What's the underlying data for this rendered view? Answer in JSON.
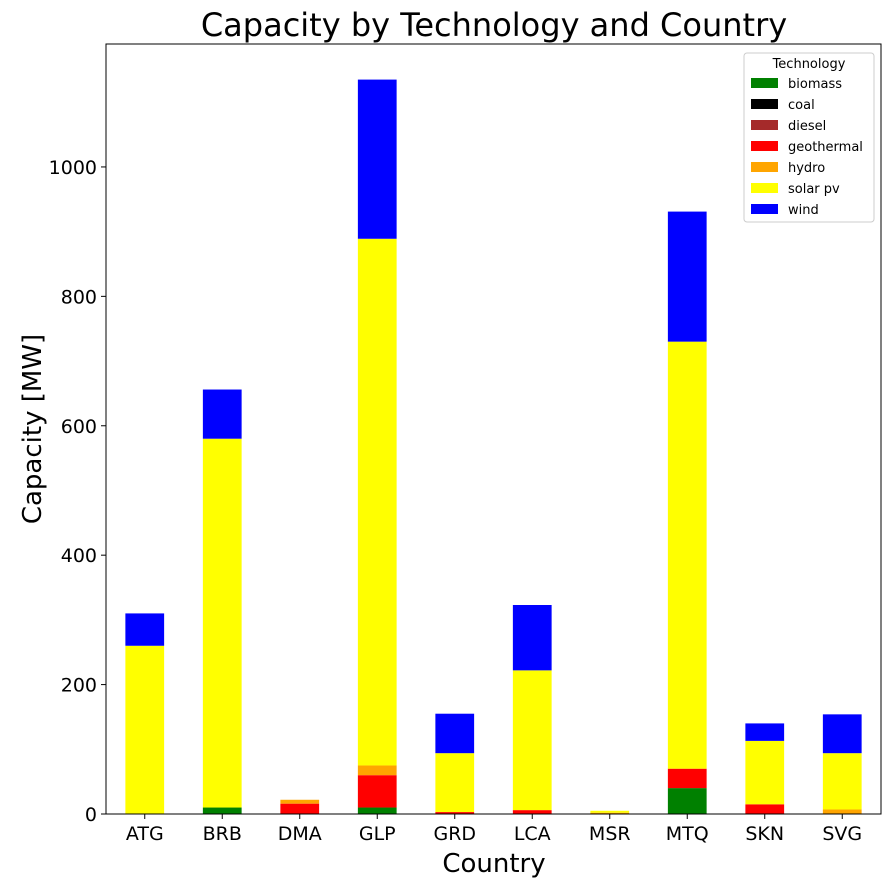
{
  "chart_data": {
    "type": "bar",
    "stacked": true,
    "title": "Capacity by Technology and Country",
    "xlabel": "Country",
    "ylabel": "Capacity [MW]",
    "ylim": [
      0,
      1190
    ],
    "yticks": [
      0,
      200,
      400,
      600,
      800,
      1000
    ],
    "grid": false,
    "legend": {
      "title": "Technology",
      "placement": "top-right"
    },
    "categories": [
      "ATG",
      "BRB",
      "DMA",
      "GLP",
      "GRD",
      "LCA",
      "MSR",
      "MTQ",
      "SKN",
      "SVG"
    ],
    "series": [
      {
        "name": "biomass",
        "color": "#008000",
        "values": [
          0,
          10,
          0,
          10,
          0,
          0,
          0,
          40,
          0,
          0
        ]
      },
      {
        "name": "coal",
        "color": "#000000",
        "values": [
          0,
          0,
          0,
          0,
          0,
          0,
          0,
          0,
          0,
          0
        ]
      },
      {
        "name": "diesel",
        "color": "#a52a2a",
        "values": [
          0,
          0,
          0,
          0,
          0,
          0,
          0,
          0,
          0,
          0
        ]
      },
      {
        "name": "geothermal",
        "color": "#ff0000",
        "values": [
          0,
          0,
          16,
          50,
          3,
          6,
          0,
          30,
          15,
          0
        ]
      },
      {
        "name": "hydro",
        "color": "#ffa500",
        "values": [
          0,
          0,
          6,
          15,
          0,
          0,
          2,
          0,
          0,
          7
        ]
      },
      {
        "name": "solar pv",
        "color": "#ffff00",
        "values": [
          260,
          570,
          0,
          814,
          91,
          216,
          3,
          660,
          98,
          87
        ]
      },
      {
        "name": "wind",
        "color": "#0000ff",
        "values": [
          50,
          76,
          0,
          246,
          61,
          101,
          0,
          201,
          27,
          60
        ]
      }
    ]
  }
}
